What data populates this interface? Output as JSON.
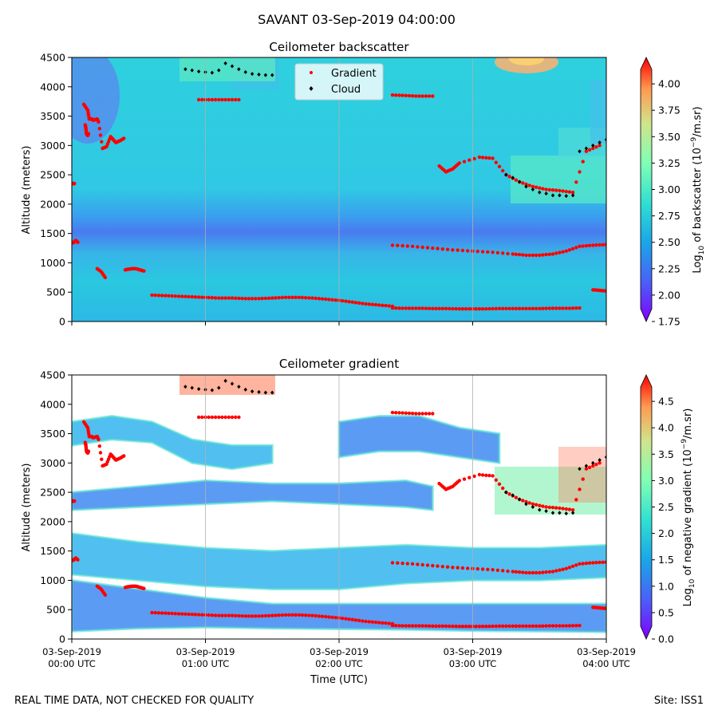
{
  "figure": {
    "title": "SAVANT 03-Sep-2019 04:00:00",
    "footer_left": "REAL TIME DATA, NOT CHECKED FOR QUALITY",
    "footer_right": "Site: ISS1"
  },
  "chart_data": [
    {
      "type": "heatmap",
      "title": "Ceilometer backscatter",
      "xlabel": "",
      "ylabel": "Altitude (meters)",
      "ylim": [
        0,
        4500
      ],
      "yticks": [
        "0",
        "500",
        "1000",
        "1500",
        "2000",
        "2500",
        "3000",
        "3500",
        "4000",
        "4500"
      ],
      "xticks": [],
      "colorbar": {
        "label_main": "Log",
        "label_sub": "10",
        "label_rest": " of backscatter (10",
        "label_sup": "−9",
        "label_end": "/m.sr)",
        "ticks": [
          "1.75",
          "2.00",
          "2.25",
          "2.50",
          "2.75",
          "3.00",
          "3.25",
          "3.50",
          "3.75",
          "4.00"
        ],
        "range": [
          1.75,
          4.25
        ]
      },
      "legend": {
        "position": "top-center",
        "entries": [
          {
            "label": "Gradient",
            "color": "#ff0000"
          },
          {
            "label": "Cloud",
            "color": "#000000"
          }
        ]
      },
      "grid_x": true,
      "gradient_layers": [
        {
          "name": "Gradient",
          "x": [
            0.02,
            0.08,
            0.14,
            0.2
          ],
          "y": [
            2350,
            2350,
            2350,
            2350
          ]
        },
        {
          "name": "Gradient",
          "x": [
            0.0,
            0.1,
            0.2,
            0.3,
            0.45
          ],
          "y": [
            1350,
            1340,
            1360,
            1380,
            1350
          ]
        },
        {
          "name": "Gradient",
          "x": [
            0.9,
            1.2,
            1.3,
            1.5,
            1.6,
            1.75,
            1.9,
            2.0,
            2.3,
            2.6,
            2.9,
            3.1,
            3.3,
            3.6,
            3.9
          ],
          "y": [
            3700,
            3600,
            3450,
            3450,
            3430,
            3440,
            3450,
            3400,
            2950,
            2980,
            3150,
            3100,
            3050,
            3080,
            3120
          ]
        },
        {
          "name": "Gradient",
          "x": [
            1.0,
            1.05,
            1.1,
            1.15,
            1.2,
            1.25
          ],
          "y": [
            3350,
            3300,
            3200,
            3180,
            3170,
            3200
          ]
        },
        {
          "name": "Gradient",
          "x": [
            1.9,
            2.2,
            2.5
          ],
          "y": [
            900,
            850,
            750
          ]
        },
        {
          "name": "Gradient",
          "x": [
            4.0,
            4.2,
            4.5,
            4.8,
            5.1,
            5.4
          ],
          "y": [
            880,
            890,
            900,
            900,
            880,
            860
          ]
        },
        {
          "name": "Gradient",
          "x": [
            6.0,
            7.0,
            8.0,
            9.0,
            10.0,
            11.0,
            12.0,
            13.0,
            14.0,
            15.0,
            16.0,
            17.0,
            18.0,
            19.0,
            20.0,
            21.0,
            22.0,
            23.0,
            24.0
          ],
          "y": [
            450,
            440,
            430,
            420,
            410,
            400,
            400,
            390,
            390,
            400,
            410,
            410,
            400,
            380,
            360,
            330,
            300,
            280,
            260
          ]
        },
        {
          "name": "Gradient",
          "x": [
            24.0,
            25.0,
            26.0,
            27.0,
            28.0,
            29.0,
            30.0,
            31.0,
            32.0,
            33.0,
            34.0,
            35.0,
            36.0,
            37.0,
            38.0
          ],
          "y": [
            230,
            225,
            225,
            220,
            220,
            215,
            215,
            215,
            220,
            220,
            220,
            220,
            225,
            225,
            230
          ]
        },
        {
          "name": "Gradient",
          "x": [
            24.0,
            25.5,
            27.0,
            28.5,
            30.0,
            31.5,
            33.0,
            34.0,
            35.0,
            36.0,
            37.0,
            38.0,
            39.0,
            40.0
          ],
          "y": [
            1300,
            1280,
            1250,
            1220,
            1200,
            1180,
            1150,
            1130,
            1130,
            1150,
            1200,
            1280,
            1300,
            1310
          ]
        },
        {
          "name": "Gradient",
          "x": [
            9.5,
            10.5,
            11.5,
            12.5
          ],
          "y": [
            3780,
            3780,
            3780,
            3780
          ]
        },
        {
          "name": "Gradient",
          "x": [
            24.0,
            25.0,
            26.0,
            27.0
          ],
          "y": [
            3860,
            3850,
            3840,
            3840
          ]
        },
        {
          "name": "Gradient",
          "x": [
            39.0,
            39.5,
            40.0
          ],
          "y": [
            540,
            530,
            520
          ]
        },
        {
          "name": "Gradient",
          "x": [
            27.5,
            28.0,
            28.5,
            29.0,
            30.5,
            31.5,
            32.5,
            33.5,
            34.5,
            35.5,
            36.5,
            37.5,
            38.5,
            39.5
          ],
          "y": [
            2650,
            2550,
            2600,
            2700,
            2800,
            2780,
            2500,
            2380,
            2300,
            2250,
            2230,
            2200,
            2900,
            3000
          ]
        }
      ],
      "cloud_layers": [
        {
          "name": "Cloud",
          "x": [
            8.5,
            9.0,
            9.5,
            10.0,
            10.5,
            11.0,
            11.5,
            12.0,
            12.5,
            13.0,
            13.5,
            14.0,
            14.5,
            15.0
          ],
          "y": [
            4300,
            4280,
            4260,
            4250,
            4240,
            4280,
            4400,
            4350,
            4300,
            4250,
            4220,
            4210,
            4200,
            4200
          ]
        },
        {
          "name": "Cloud",
          "x": [
            32.5,
            33.0,
            33.5,
            34.0,
            34.5,
            35.0,
            35.5,
            36.0,
            36.5,
            37.0,
            37.5,
            38.0,
            38.5,
            39.0,
            39.5,
            40.0
          ],
          "y": [
            2500,
            2450,
            2380,
            2300,
            2250,
            2200,
            2180,
            2150,
            2150,
            2140,
            2150,
            2900,
            2950,
            3000,
            3050,
            3100
          ]
        }
      ]
    },
    {
      "type": "heatmap",
      "title": "Ceilometer gradient",
      "xlabel": "Time (UTC)",
      "ylabel": "Altitude (meters)",
      "ylim": [
        0,
        4500
      ],
      "yticks": [
        "0",
        "500",
        "1000",
        "1500",
        "2000",
        "2500",
        "3000",
        "3500",
        "4000",
        "4500"
      ],
      "xticks": [
        {
          "line1": "03-Sep-2019",
          "line2": "00:00 UTC"
        },
        {
          "line1": "03-Sep-2019",
          "line2": "01:00 UTC"
        },
        {
          "line1": "03-Sep-2019",
          "line2": "02:00 UTC"
        },
        {
          "line1": "03-Sep-2019",
          "line2": "03:00 UTC"
        },
        {
          "line1": "03-Sep-2019",
          "line2": "04:00 UTC"
        }
      ],
      "colorbar": {
        "label_main": "Log",
        "label_sub": "10",
        "label_rest": " of negative gradient (10",
        "label_sup": "−9",
        "label_end": "/m.sr)",
        "ticks": [
          "0.0",
          "0.5",
          "1.0",
          "1.5",
          "2.0",
          "2.5",
          "3.0",
          "3.5",
          "4.0",
          "4.5"
        ],
        "range": [
          0.0,
          5.0
        ]
      },
      "grid_x": true,
      "bands": [
        {
          "x": [
            0,
            5,
            10,
            15,
            20,
            25,
            30,
            35,
            40
          ],
          "y_low": [
            130,
            180,
            200,
            180,
            170,
            160,
            140,
            130,
            120
          ],
          "y_high": [
            1000,
            850,
            700,
            600,
            600,
            600,
            600,
            600,
            600
          ]
        },
        {
          "x": [
            0,
            5,
            10,
            15,
            20,
            25,
            30,
            35,
            40
          ],
          "y_low": [
            1100,
            1000,
            900,
            850,
            850,
            950,
            1000,
            1000,
            1050
          ],
          "y_high": [
            1800,
            1650,
            1550,
            1500,
            1550,
            1600,
            1550,
            1550,
            1600
          ]
        },
        {
          "x": [
            0,
            5,
            10,
            15,
            20,
            25,
            27
          ],
          "y_low": [
            2200,
            2250,
            2300,
            2350,
            2300,
            2250,
            2200
          ],
          "y_high": [
            2500,
            2600,
            2700,
            2650,
            2650,
            2700,
            2600
          ]
        },
        {
          "x": [
            0,
            3,
            6,
            9,
            12,
            15
          ],
          "y_low": [
            3300,
            3400,
            3350,
            3000,
            2900,
            3000
          ],
          "y_high": [
            3700,
            3800,
            3700,
            3400,
            3300,
            3300
          ]
        },
        {
          "x": [
            20,
            23,
            26,
            29,
            32
          ],
          "y_low": [
            3100,
            3200,
            3200,
            3100,
            3000
          ],
          "y_high": [
            3700,
            3800,
            3800,
            3600,
            3500
          ]
        }
      ]
    }
  ]
}
